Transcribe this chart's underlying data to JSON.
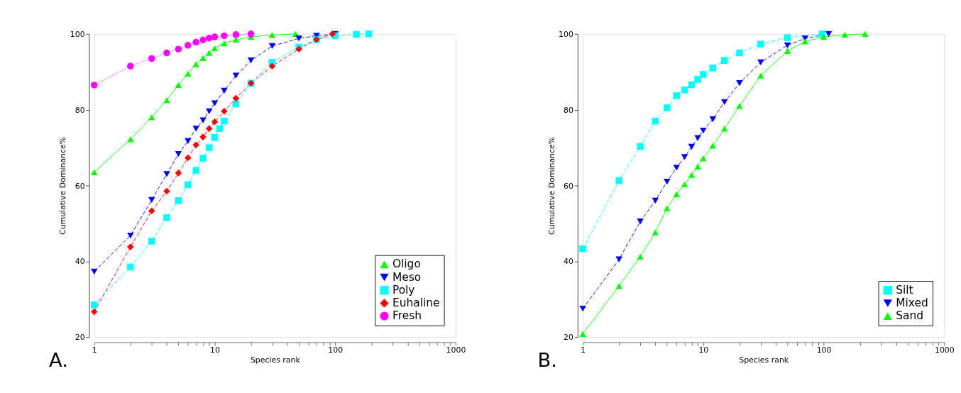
{
  "chart_data": [
    {
      "type": "line",
      "xlabel": "Species rank",
      "ylabel": "Cumulative Dominance%",
      "log": "x",
      "grid": false,
      "legend": "bottom right",
      "annotations": [
        "A."
      ],
      "xlim": [
        1,
        1000
      ],
      "ylim": [
        20,
        100
      ],
      "xticks": [
        1,
        {
          "value": 2,
          "label": null
        },
        {
          "value": 3,
          "label": null
        },
        {
          "value": 4,
          "label": null
        },
        {
          "value": 5,
          "label": null
        },
        {
          "value": 6,
          "label": null
        },
        {
          "value": 7,
          "label": null
        },
        {
          "value": 8,
          "label": null
        },
        {
          "value": 9,
          "label": null
        },
        10,
        {
          "value": 20,
          "label": null
        },
        {
          "value": 30,
          "label": null
        },
        {
          "value": 40,
          "label": null
        },
        {
          "value": 50,
          "label": null
        },
        {
          "value": 60,
          "label": null
        },
        {
          "value": 70,
          "label": null
        },
        {
          "value": 80,
          "label": null
        },
        {
          "value": 90,
          "label": null
        },
        100,
        {
          "value": 200,
          "label": null
        },
        {
          "value": 300,
          "label": null
        },
        {
          "value": 400,
          "label": null
        },
        {
          "value": 500,
          "label": null
        },
        {
          "value": 600,
          "label": null
        },
        {
          "value": 700,
          "label": null
        },
        {
          "value": 800,
          "label": null
        },
        {
          "value": 900,
          "label": null
        },
        1000
      ],
      "yticks": [
        20,
        40,
        60,
        80,
        100
      ],
      "series": [
        {
          "name": "Oligo",
          "color": "#00ff00",
          "marker": "triangle",
          "line_style": "solid",
          "x": [
            1,
            2,
            3,
            4,
            5,
            6,
            7,
            8,
            9,
            10,
            12,
            15,
            20,
            30,
            47
          ],
          "values": [
            63.5,
            72.2,
            78,
            82.5,
            86.5,
            89.5,
            92,
            93.6,
            95,
            96.2,
            97.5,
            98.5,
            99.2,
            99.7,
            100
          ]
        },
        {
          "name": "Meso",
          "color": "#0000ff",
          "marker": "triangle-down",
          "line_style": "dashed",
          "x": [
            1,
            2,
            3,
            4,
            5,
            6,
            7,
            8,
            9,
            10,
            12,
            15,
            20,
            30,
            50,
            70,
            100
          ],
          "values": [
            37.3,
            46.8,
            56.2,
            63,
            68.3,
            71.7,
            75,
            77.2,
            79.6,
            81.7,
            85,
            89,
            93,
            96.8,
            98.8,
            99.5,
            100
          ]
        },
        {
          "name": "Poly",
          "color": "#00ffff",
          "marker": "square",
          "line_style": "dashed",
          "x": [
            1,
            2,
            3,
            4,
            5,
            6,
            7,
            8,
            9,
            10,
            11,
            12,
            15,
            20,
            30,
            50,
            70,
            100,
            150,
            190
          ],
          "values": [
            28.5,
            38.5,
            45.3,
            51.5,
            56,
            60.2,
            64,
            67.2,
            70,
            72.7,
            75,
            77,
            81.5,
            87,
            92.5,
            96.5,
            98.5,
            99.5,
            99.9,
            100
          ]
        },
        {
          "name": "Euhaline",
          "color": "#ff0000",
          "marker": "diamond",
          "line_style": "dashed",
          "x": [
            1,
            2,
            3,
            4,
            5,
            6,
            7,
            8,
            9,
            10,
            12,
            15,
            20,
            30,
            50,
            70,
            95
          ],
          "values": [
            26.7,
            43.8,
            53.3,
            58.5,
            63.3,
            67.3,
            70.7,
            72.8,
            75,
            76.8,
            79.6,
            83,
            87,
            91.5,
            96,
            98.5,
            100
          ]
        },
        {
          "name": "Fresh",
          "color": "#ff00ff",
          "marker": "circle",
          "line_style": "dotted",
          "x": [
            1,
            2,
            3,
            4,
            5,
            6,
            7,
            8,
            9,
            10,
            12,
            15,
            20
          ],
          "values": [
            86.5,
            91.5,
            93.5,
            95,
            96,
            97,
            97.8,
            98.4,
            98.9,
            99.2,
            99.5,
            99.8,
            100
          ]
        }
      ]
    },
    {
      "type": "line",
      "xlabel": "Species rank",
      "ylabel": "Cumulative Dominance%",
      "log": "x",
      "grid": false,
      "legend": "bottom right",
      "annotations": [
        "B."
      ],
      "xlim": [
        1,
        1000
      ],
      "ylim": [
        20,
        100
      ],
      "xticks": [
        1,
        {
          "value": 2,
          "label": null
        },
        {
          "value": 3,
          "label": null
        },
        {
          "value": 4,
          "label": null
        },
        {
          "value": 5,
          "label": null
        },
        {
          "value": 6,
          "label": null
        },
        {
          "value": 7,
          "label": null
        },
        {
          "value": 8,
          "label": null
        },
        {
          "value": 9,
          "label": null
        },
        10,
        {
          "value": 20,
          "label": null
        },
        {
          "value": 30,
          "label": null
        },
        {
          "value": 40,
          "label": null
        },
        {
          "value": 50,
          "label": null
        },
        {
          "value": 60,
          "label": null
        },
        {
          "value": 70,
          "label": null
        },
        {
          "value": 80,
          "label": null
        },
        {
          "value": 90,
          "label": null
        },
        100,
        {
          "value": 200,
          "label": null
        },
        {
          "value": 300,
          "label": null
        },
        {
          "value": 400,
          "label": null
        },
        {
          "value": 500,
          "label": null
        },
        {
          "value": 600,
          "label": null
        },
        {
          "value": 700,
          "label": null
        },
        {
          "value": 800,
          "label": null
        },
        {
          "value": 900,
          "label": null
        },
        1000
      ],
      "yticks": [
        20,
        40,
        60,
        80,
        100
      ],
      "series": [
        {
          "name": "Silt",
          "color": "#00ffff",
          "marker": "square",
          "line_style": "dashed",
          "x": [
            1,
            2,
            3,
            4,
            5,
            6,
            7,
            8,
            9,
            10,
            12,
            15,
            20,
            30,
            50,
            97
          ],
          "values": [
            43.3,
            61.3,
            70.3,
            77,
            80.5,
            83.7,
            85.2,
            86.6,
            88,
            89.3,
            91,
            93,
            95,
            97.3,
            99,
            100
          ]
        },
        {
          "name": "Mixed",
          "color": "#0000ff",
          "marker": "triangle-down",
          "line_style": "dashed",
          "x": [
            1,
            2,
            3,
            4,
            5,
            6,
            7,
            8,
            9,
            10,
            12,
            15,
            20,
            30,
            50,
            70,
            110
          ],
          "values": [
            27.5,
            40.5,
            50.5,
            56,
            61,
            64.7,
            67.5,
            70.2,
            72.5,
            74.5,
            77.5,
            82,
            87,
            92.5,
            97,
            98.8,
            100
          ]
        },
        {
          "name": "Sand",
          "color": "#00ff00",
          "marker": "triangle",
          "line_style": "solid",
          "x": [
            1,
            2,
            3,
            4,
            5,
            6,
            7,
            8,
            9,
            10,
            12,
            15,
            20,
            30,
            50,
            70,
            100,
            150,
            220
          ],
          "values": [
            20.8,
            33.5,
            41.2,
            47.6,
            54,
            57.7,
            60.3,
            62.8,
            65,
            67.2,
            70.5,
            75,
            81,
            89,
            95.5,
            98,
            99.2,
            99.8,
            100
          ]
        }
      ]
    }
  ]
}
